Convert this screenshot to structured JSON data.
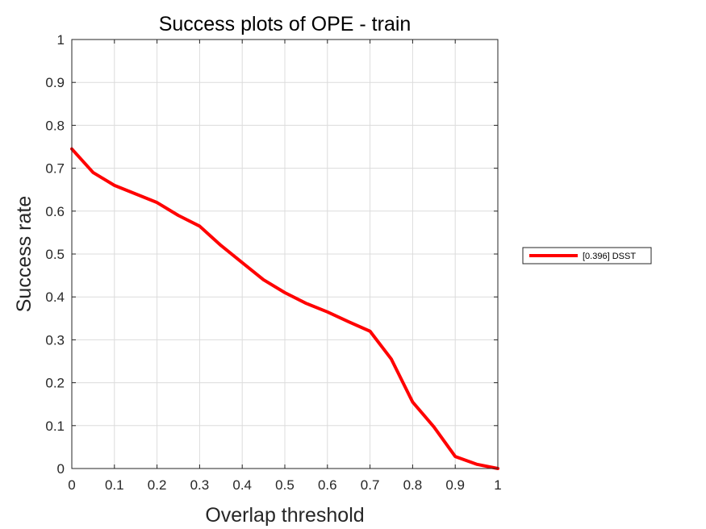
{
  "chart_data": {
    "type": "line",
    "title": "Success plots of OPE - train",
    "xlabel": "Overlap threshold",
    "ylabel": "Success rate",
    "xlim": [
      0,
      1
    ],
    "ylim": [
      0,
      1
    ],
    "grid": true,
    "legend_position": "outside-right",
    "x_ticks": [
      "0",
      "0.1",
      "0.2",
      "0.3",
      "0.4",
      "0.5",
      "0.6",
      "0.7",
      "0.8",
      "0.9",
      "1"
    ],
    "y_ticks": [
      "0",
      "0.1",
      "0.2",
      "0.3",
      "0.4",
      "0.5",
      "0.6",
      "0.7",
      "0.8",
      "0.9",
      "1"
    ],
    "series": [
      {
        "name": "[0.396] DSST",
        "color": "#ff0000",
        "x": [
          0,
          0.05,
          0.1,
          0.15,
          0.2,
          0.25,
          0.3,
          0.35,
          0.4,
          0.45,
          0.5,
          0.55,
          0.6,
          0.65,
          0.7,
          0.75,
          0.8,
          0.85,
          0.9,
          0.95,
          1
        ],
        "y": [
          0.745,
          0.69,
          0.66,
          0.64,
          0.62,
          0.59,
          0.565,
          0.52,
          0.48,
          0.44,
          0.41,
          0.385,
          0.365,
          0.342,
          0.32,
          0.255,
          0.155,
          0.097,
          0.028,
          0.01,
          0
        ]
      }
    ]
  }
}
